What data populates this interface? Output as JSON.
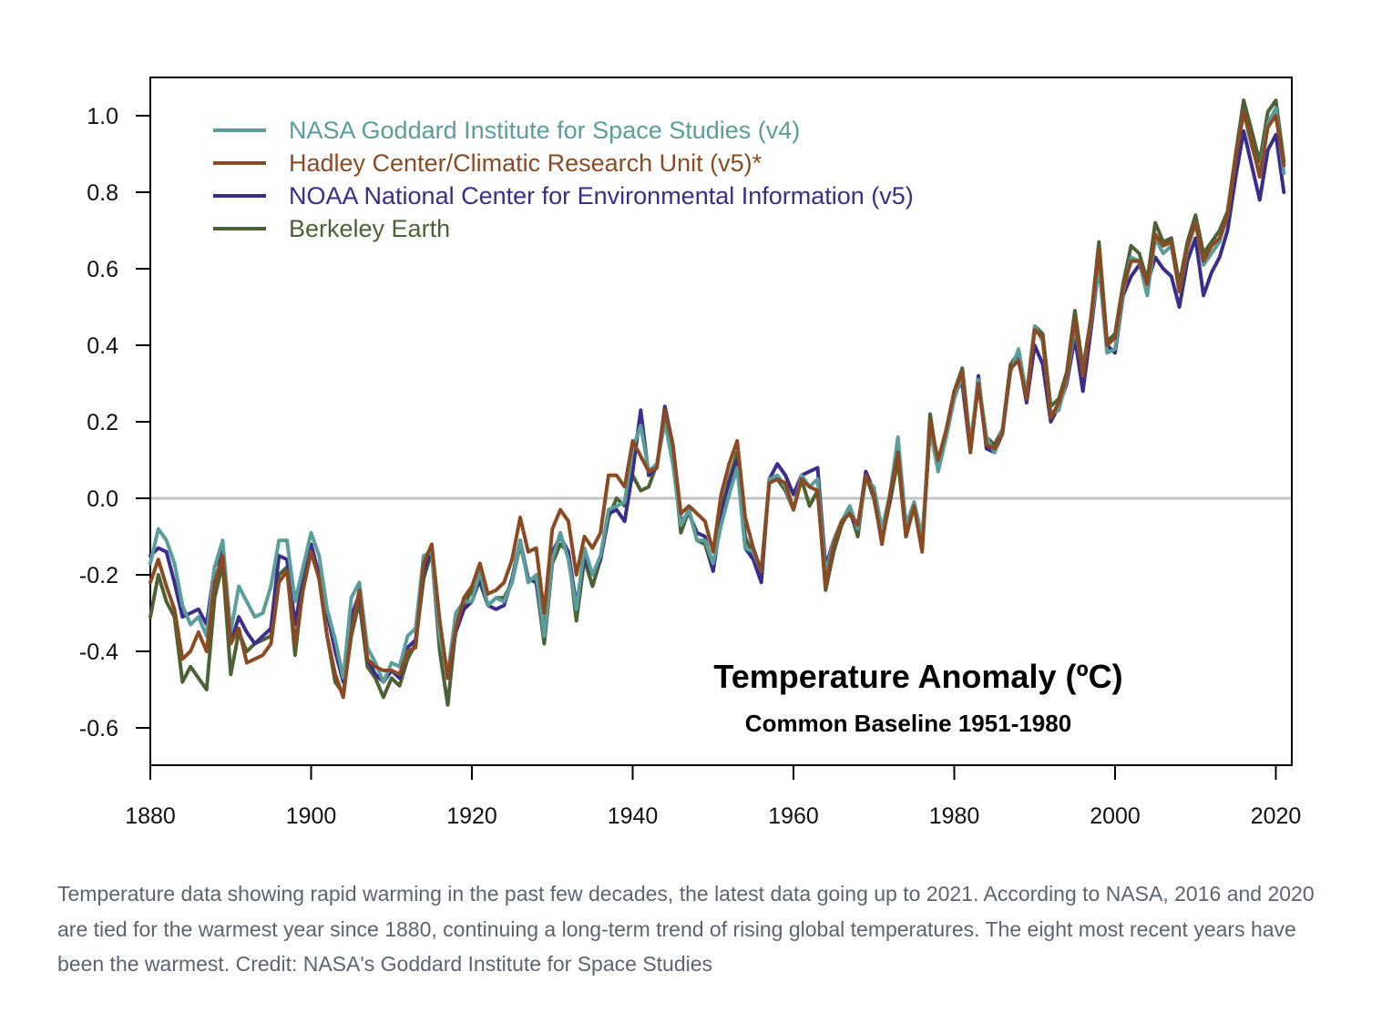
{
  "caption": "Temperature data showing rapid warming in the past few decades, the latest data going up to 2021. According to NASA, 2016 and 2020 are tied for the warmest year since 1880, continuing a long-term trend of rising global temperatures. The eight most recent years have been the warmest. Credit: NASA's Goddard Institute for Space Studies",
  "chart_data": {
    "type": "line",
    "title": "Temperature Anomaly (ºC)",
    "subtitle": "Common Baseline 1951-1980",
    "xlabel": "",
    "ylabel": "",
    "xlim": [
      1880,
      2022
    ],
    "ylim": [
      -0.7,
      1.1
    ],
    "x_ticks": [
      1880,
      1900,
      1920,
      1940,
      1960,
      1980,
      2000,
      2020
    ],
    "y_ticks": [
      -0.6,
      -0.4,
      -0.2,
      0.0,
      0.2,
      0.4,
      0.6,
      0.8,
      1.0
    ],
    "y_tick_labels": [
      "-0.6",
      "-0.4",
      "-0.2",
      "0.0",
      "0.2",
      "0.4",
      "0.6",
      "0.8",
      "1.0"
    ],
    "zero_line": true,
    "grid": false,
    "legend_position": "top-left",
    "x": [
      1880,
      1881,
      1882,
      1883,
      1884,
      1885,
      1886,
      1887,
      1888,
      1889,
      1890,
      1891,
      1892,
      1893,
      1894,
      1895,
      1896,
      1897,
      1898,
      1899,
      1900,
      1901,
      1902,
      1903,
      1904,
      1905,
      1906,
      1907,
      1908,
      1909,
      1910,
      1911,
      1912,
      1913,
      1914,
      1915,
      1916,
      1917,
      1918,
      1919,
      1920,
      1921,
      1922,
      1923,
      1924,
      1925,
      1926,
      1927,
      1928,
      1929,
      1930,
      1931,
      1932,
      1933,
      1934,
      1935,
      1936,
      1937,
      1938,
      1939,
      1940,
      1941,
      1942,
      1943,
      1944,
      1945,
      1946,
      1947,
      1948,
      1949,
      1950,
      1951,
      1952,
      1953,
      1954,
      1955,
      1956,
      1957,
      1958,
      1959,
      1960,
      1961,
      1962,
      1963,
      1964,
      1965,
      1966,
      1967,
      1968,
      1969,
      1970,
      1971,
      1972,
      1973,
      1974,
      1975,
      1976,
      1977,
      1978,
      1979,
      1980,
      1981,
      1982,
      1983,
      1984,
      1985,
      1986,
      1987,
      1988,
      1989,
      1990,
      1991,
      1992,
      1993,
      1994,
      1995,
      1996,
      1997,
      1998,
      1999,
      2000,
      2001,
      2002,
      2003,
      2004,
      2005,
      2006,
      2007,
      2008,
      2009,
      2010,
      2011,
      2012,
      2013,
      2014,
      2015,
      2016,
      2017,
      2018,
      2019,
      2020,
      2021
    ],
    "series": [
      {
        "name": "NASA Goddard Institute for Space Studies (v4)",
        "color": "#5a9e9c",
        "values": [
          -0.17,
          -0.08,
          -0.11,
          -0.17,
          -0.28,
          -0.33,
          -0.31,
          -0.36,
          -0.18,
          -0.11,
          -0.35,
          -0.23,
          -0.27,
          -0.31,
          -0.3,
          -0.23,
          -0.11,
          -0.11,
          -0.27,
          -0.18,
          -0.09,
          -0.15,
          -0.29,
          -0.37,
          -0.47,
          -0.26,
          -0.22,
          -0.39,
          -0.43,
          -0.48,
          -0.43,
          -0.44,
          -0.36,
          -0.34,
          -0.15,
          -0.14,
          -0.36,
          -0.46,
          -0.3,
          -0.27,
          -0.27,
          -0.19,
          -0.28,
          -0.26,
          -0.27,
          -0.22,
          -0.11,
          -0.22,
          -0.2,
          -0.36,
          -0.16,
          -0.09,
          -0.16,
          -0.29,
          -0.13,
          -0.2,
          -0.15,
          -0.03,
          -0.02,
          -0.01,
          0.13,
          0.19,
          0.07,
          0.09,
          0.2,
          0.09,
          -0.07,
          -0.03,
          -0.11,
          -0.11,
          -0.17,
          -0.07,
          0.01,
          0.08,
          -0.13,
          -0.14,
          -0.19,
          0.05,
          0.06,
          0.03,
          -0.03,
          0.06,
          0.03,
          0.05,
          -0.2,
          -0.11,
          -0.06,
          -0.02,
          -0.08,
          0.05,
          0.03,
          -0.08,
          0.01,
          0.16,
          -0.07,
          -0.01,
          -0.1,
          0.18,
          0.07,
          0.16,
          0.26,
          0.32,
          0.14,
          0.31,
          0.16,
          0.12,
          0.18,
          0.33,
          0.39,
          0.27,
          0.45,
          0.41,
          0.22,
          0.23,
          0.31,
          0.45,
          0.33,
          0.46,
          0.61,
          0.38,
          0.39,
          0.54,
          0.63,
          0.62,
          0.53,
          0.68,
          0.64,
          0.66,
          0.54,
          0.65,
          0.72,
          0.61,
          0.64,
          0.67,
          0.74,
          0.89,
          1.01,
          0.92,
          0.85,
          0.98,
          1.02,
          0.85
        ]
      },
      {
        "name": "Hadley Center/Climatic Research Unit (v5)*",
        "color": "#8b4a22",
        "values": [
          -0.22,
          -0.16,
          -0.23,
          -0.29,
          -0.42,
          -0.4,
          -0.35,
          -0.4,
          -0.22,
          -0.15,
          -0.38,
          -0.34,
          -0.43,
          -0.42,
          -0.41,
          -0.38,
          -0.22,
          -0.19,
          -0.38,
          -0.24,
          -0.14,
          -0.21,
          -0.36,
          -0.46,
          -0.52,
          -0.35,
          -0.24,
          -0.42,
          -0.44,
          -0.45,
          -0.45,
          -0.46,
          -0.4,
          -0.39,
          -0.17,
          -0.12,
          -0.32,
          -0.47,
          -0.34,
          -0.26,
          -0.23,
          -0.17,
          -0.25,
          -0.24,
          -0.22,
          -0.16,
          -0.05,
          -0.14,
          -0.13,
          -0.3,
          -0.08,
          -0.03,
          -0.06,
          -0.2,
          -0.1,
          -0.13,
          -0.09,
          0.06,
          0.06,
          0.03,
          0.15,
          0.11,
          0.07,
          0.08,
          0.23,
          0.14,
          -0.04,
          -0.02,
          -0.04,
          -0.06,
          -0.14,
          0.01,
          0.09,
          0.15,
          -0.05,
          -0.13,
          -0.19,
          0.04,
          0.05,
          0.04,
          -0.03,
          0.05,
          0.03,
          0.02,
          -0.23,
          -0.12,
          -0.06,
          -0.04,
          -0.07,
          0.06,
          0.01,
          -0.12,
          0.01,
          0.12,
          -0.1,
          -0.02,
          -0.14,
          0.2,
          0.1,
          0.18,
          0.28,
          0.33,
          0.12,
          0.3,
          0.14,
          0.13,
          0.17,
          0.34,
          0.36,
          0.26,
          0.44,
          0.42,
          0.21,
          0.25,
          0.32,
          0.47,
          0.32,
          0.47,
          0.65,
          0.4,
          0.42,
          0.55,
          0.62,
          0.62,
          0.56,
          0.69,
          0.66,
          0.67,
          0.54,
          0.66,
          0.72,
          0.62,
          0.66,
          0.68,
          0.74,
          0.89,
          1.01,
          0.93,
          0.84,
          0.97,
          1.0,
          0.87
        ]
      },
      {
        "name": "NOAA National Center for Environmental Information (v5)",
        "color": "#3b2d8a",
        "values": [
          -0.15,
          -0.13,
          -0.14,
          -0.22,
          -0.31,
          -0.3,
          -0.29,
          -0.33,
          -0.18,
          -0.14,
          -0.38,
          -0.31,
          -0.35,
          -0.38,
          -0.36,
          -0.34,
          -0.15,
          -0.16,
          -0.33,
          -0.21,
          -0.12,
          -0.2,
          -0.3,
          -0.4,
          -0.48,
          -0.31,
          -0.25,
          -0.42,
          -0.46,
          -0.48,
          -0.45,
          -0.47,
          -0.39,
          -0.37,
          -0.19,
          -0.13,
          -0.33,
          -0.47,
          -0.35,
          -0.29,
          -0.27,
          -0.21,
          -0.28,
          -0.29,
          -0.28,
          -0.21,
          -0.11,
          -0.21,
          -0.22,
          -0.35,
          -0.14,
          -0.1,
          -0.14,
          -0.28,
          -0.15,
          -0.2,
          -0.16,
          -0.04,
          -0.03,
          -0.06,
          0.07,
          0.23,
          0.06,
          0.08,
          0.24,
          0.14,
          -0.06,
          -0.04,
          -0.09,
          -0.1,
          -0.19,
          -0.05,
          0.04,
          0.1,
          -0.13,
          -0.16,
          -0.22,
          0.05,
          0.09,
          0.06,
          0.01,
          0.06,
          0.07,
          0.08,
          -0.18,
          -0.11,
          -0.06,
          -0.04,
          -0.08,
          0.07,
          0.02,
          -0.1,
          0.0,
          0.15,
          -0.1,
          -0.02,
          -0.12,
          0.18,
          0.09,
          0.17,
          0.28,
          0.3,
          0.12,
          0.32,
          0.13,
          0.12,
          0.17,
          0.34,
          0.37,
          0.25,
          0.4,
          0.35,
          0.2,
          0.24,
          0.3,
          0.42,
          0.28,
          0.44,
          0.61,
          0.4,
          0.38,
          0.53,
          0.58,
          0.61,
          0.56,
          0.63,
          0.6,
          0.58,
          0.5,
          0.62,
          0.68,
          0.53,
          0.59,
          0.63,
          0.7,
          0.84,
          0.96,
          0.87,
          0.78,
          0.91,
          0.95,
          0.8
        ]
      },
      {
        "name": "Berkeley Earth",
        "color": "#4a6234",
        "values": [
          -0.31,
          -0.2,
          -0.27,
          -0.31,
          -0.48,
          -0.44,
          -0.47,
          -0.5,
          -0.26,
          -0.17,
          -0.46,
          -0.35,
          -0.4,
          -0.38,
          -0.37,
          -0.36,
          -0.2,
          -0.18,
          -0.41,
          -0.23,
          -0.14,
          -0.21,
          -0.36,
          -0.48,
          -0.51,
          -0.36,
          -0.27,
          -0.44,
          -0.47,
          -0.52,
          -0.47,
          -0.49,
          -0.42,
          -0.38,
          -0.21,
          -0.14,
          -0.4,
          -0.54,
          -0.34,
          -0.28,
          -0.24,
          -0.22,
          -0.28,
          -0.26,
          -0.26,
          -0.22,
          -0.12,
          -0.21,
          -0.22,
          -0.38,
          -0.17,
          -0.12,
          -0.14,
          -0.32,
          -0.16,
          -0.23,
          -0.16,
          -0.05,
          0.0,
          -0.02,
          0.06,
          0.02,
          0.03,
          0.09,
          0.2,
          0.12,
          -0.09,
          -0.03,
          -0.11,
          -0.12,
          -0.19,
          -0.03,
          0.05,
          0.12,
          -0.1,
          -0.15,
          -0.2,
          0.05,
          0.05,
          0.02,
          -0.03,
          0.05,
          -0.02,
          0.02,
          -0.24,
          -0.14,
          -0.07,
          -0.03,
          -0.1,
          0.06,
          0.0,
          -0.11,
          -0.01,
          0.1,
          -0.1,
          -0.01,
          -0.13,
          0.22,
          0.08,
          0.17,
          0.28,
          0.34,
          0.14,
          0.3,
          0.16,
          0.14,
          0.18,
          0.35,
          0.38,
          0.27,
          0.45,
          0.43,
          0.24,
          0.26,
          0.33,
          0.49,
          0.34,
          0.47,
          0.67,
          0.41,
          0.43,
          0.56,
          0.66,
          0.64,
          0.57,
          0.72,
          0.67,
          0.68,
          0.56,
          0.67,
          0.74,
          0.64,
          0.67,
          0.7,
          0.75,
          0.9,
          1.04,
          0.96,
          0.88,
          1.01,
          1.04,
          0.88
        ]
      }
    ]
  }
}
